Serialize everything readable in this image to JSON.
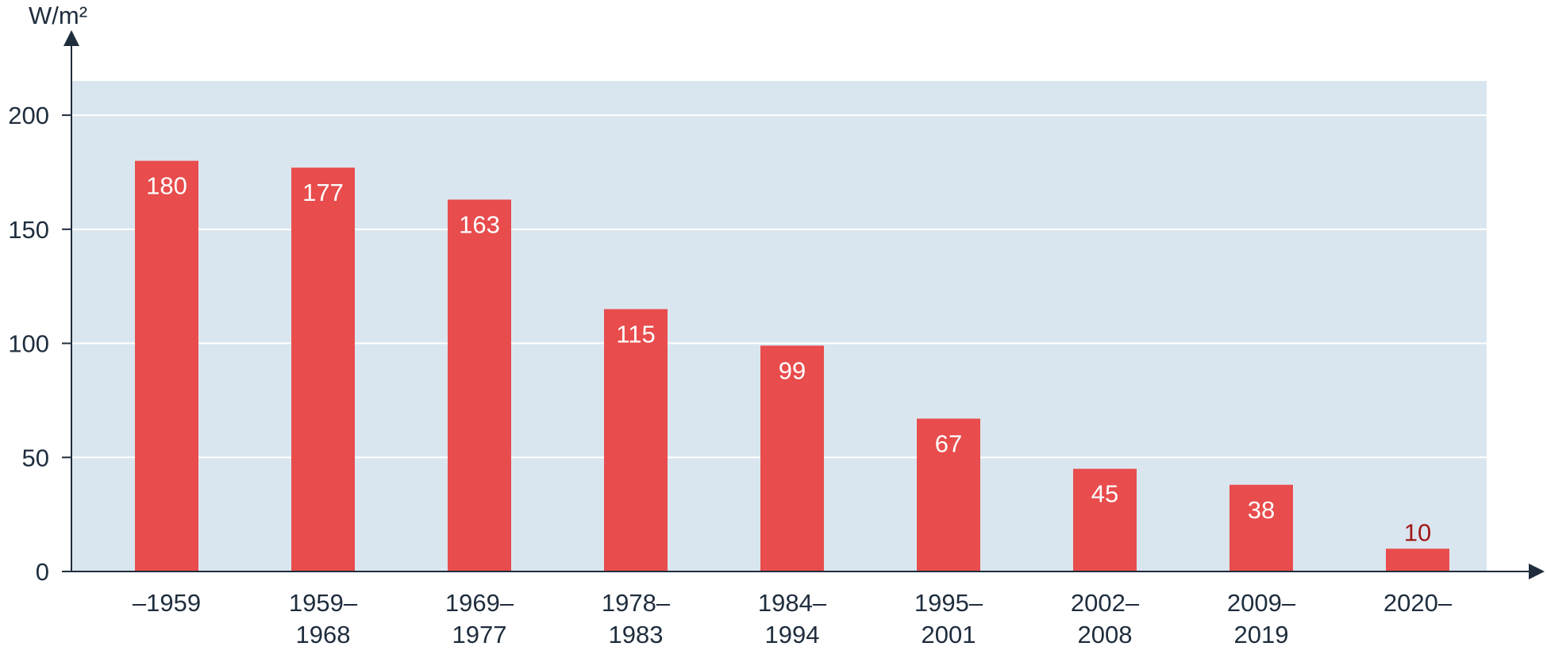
{
  "chart_data": {
    "type": "bar",
    "title": "",
    "xlabel": "",
    "ylabel": "W/m²",
    "categories": [
      [
        "–1959"
      ],
      [
        "1959–",
        "1968"
      ],
      [
        "1969–",
        "1977"
      ],
      [
        "1978–",
        "1983"
      ],
      [
        "1984–",
        "1994"
      ],
      [
        "1995–",
        "2001"
      ],
      [
        "2002–",
        "2008"
      ],
      [
        "2009–",
        "2019"
      ],
      [
        "2020–"
      ]
    ],
    "values": [
      180,
      177,
      163,
      115,
      99,
      67,
      45,
      38,
      10
    ],
    "value_labels": [
      "180",
      "177",
      "163",
      "115",
      "99",
      "67",
      "45",
      "38",
      "10"
    ],
    "ylim": [
      0,
      215
    ],
    "yticks": [
      0,
      50,
      100,
      150,
      200
    ],
    "grid": true,
    "legend": "none",
    "colors": {
      "bar": "#e84c4c",
      "plot_background": "#dae6ef",
      "grid": "#ffffff",
      "axis": "#1f2d3d",
      "label_inside": "#ffffff",
      "label_outside": "#a01818"
    }
  }
}
